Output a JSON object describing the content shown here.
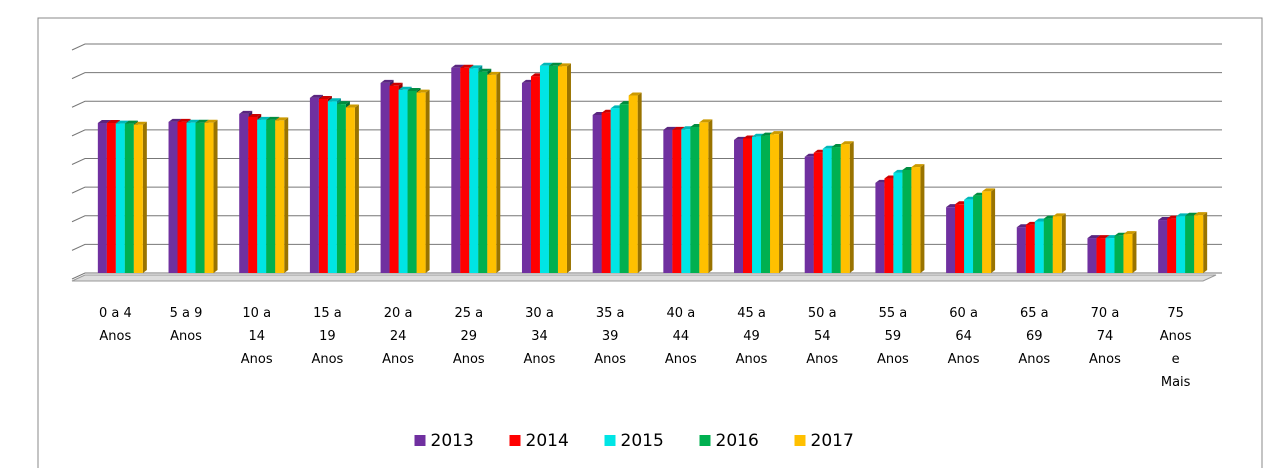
{
  "chart_data": {
    "type": "bar",
    "categories": [
      "0 a 4\nAnos",
      "5 a 9\nAnos",
      "10 a\n14\nAnos",
      "15 a\n19\nAnos",
      "20 a\n24\nAnos",
      "25 a\n29\nAnos",
      "30 a\n34\nAnos",
      "35 a\n39\nAnos",
      "40 a\n44\nAnos",
      "45 a\n49\nAnos",
      "50 a\n54\nAnos",
      "55 a\n59\nAnos",
      "60 a\n64\nAnos",
      "65 a\n69\nAnos",
      "70 a\n74\nAnos",
      "75\nAnos\ne\nMais"
    ],
    "series": [
      {
        "name": "2013",
        "color": "#7030a0",
        "values": [
          5.24,
          5.28,
          5.56,
          6.12,
          6.64,
          7.17,
          6.64,
          5.52,
          5.0,
          4.65,
          4.06,
          3.15,
          2.3,
          1.6,
          1.22,
          1.85
        ]
      },
      {
        "name": "2014",
        "color": "#ff0000",
        "values": [
          5.24,
          5.28,
          5.45,
          6.08,
          6.54,
          7.17,
          6.87,
          5.6,
          5.0,
          4.7,
          4.2,
          3.3,
          2.4,
          1.68,
          1.22,
          1.9
        ]
      },
      {
        "name": "2015",
        "color": "#00e5e5",
        "values": [
          5.22,
          5.25,
          5.35,
          6.0,
          6.4,
          7.15,
          7.24,
          5.75,
          5.02,
          4.76,
          4.34,
          3.5,
          2.56,
          1.8,
          1.22,
          1.98
        ]
      },
      {
        "name": "2016",
        "color": "#00b050",
        "values": [
          5.22,
          5.25,
          5.35,
          5.9,
          6.36,
          7.03,
          7.24,
          5.9,
          5.1,
          4.8,
          4.4,
          3.6,
          2.7,
          1.9,
          1.3,
          2.0
        ]
      },
      {
        "name": "2017",
        "color": "#ffc000",
        "values": [
          5.18,
          5.25,
          5.33,
          5.78,
          6.3,
          6.92,
          7.22,
          6.2,
          5.26,
          4.85,
          4.5,
          3.7,
          2.85,
          1.98,
          1.36,
          2.02
        ]
      }
    ],
    "ylim": [
      0,
      8
    ],
    "yticks": [
      0,
      1,
      2,
      3,
      4,
      5,
      6,
      7,
      8
    ],
    "grid": true,
    "legend": "bottom"
  }
}
